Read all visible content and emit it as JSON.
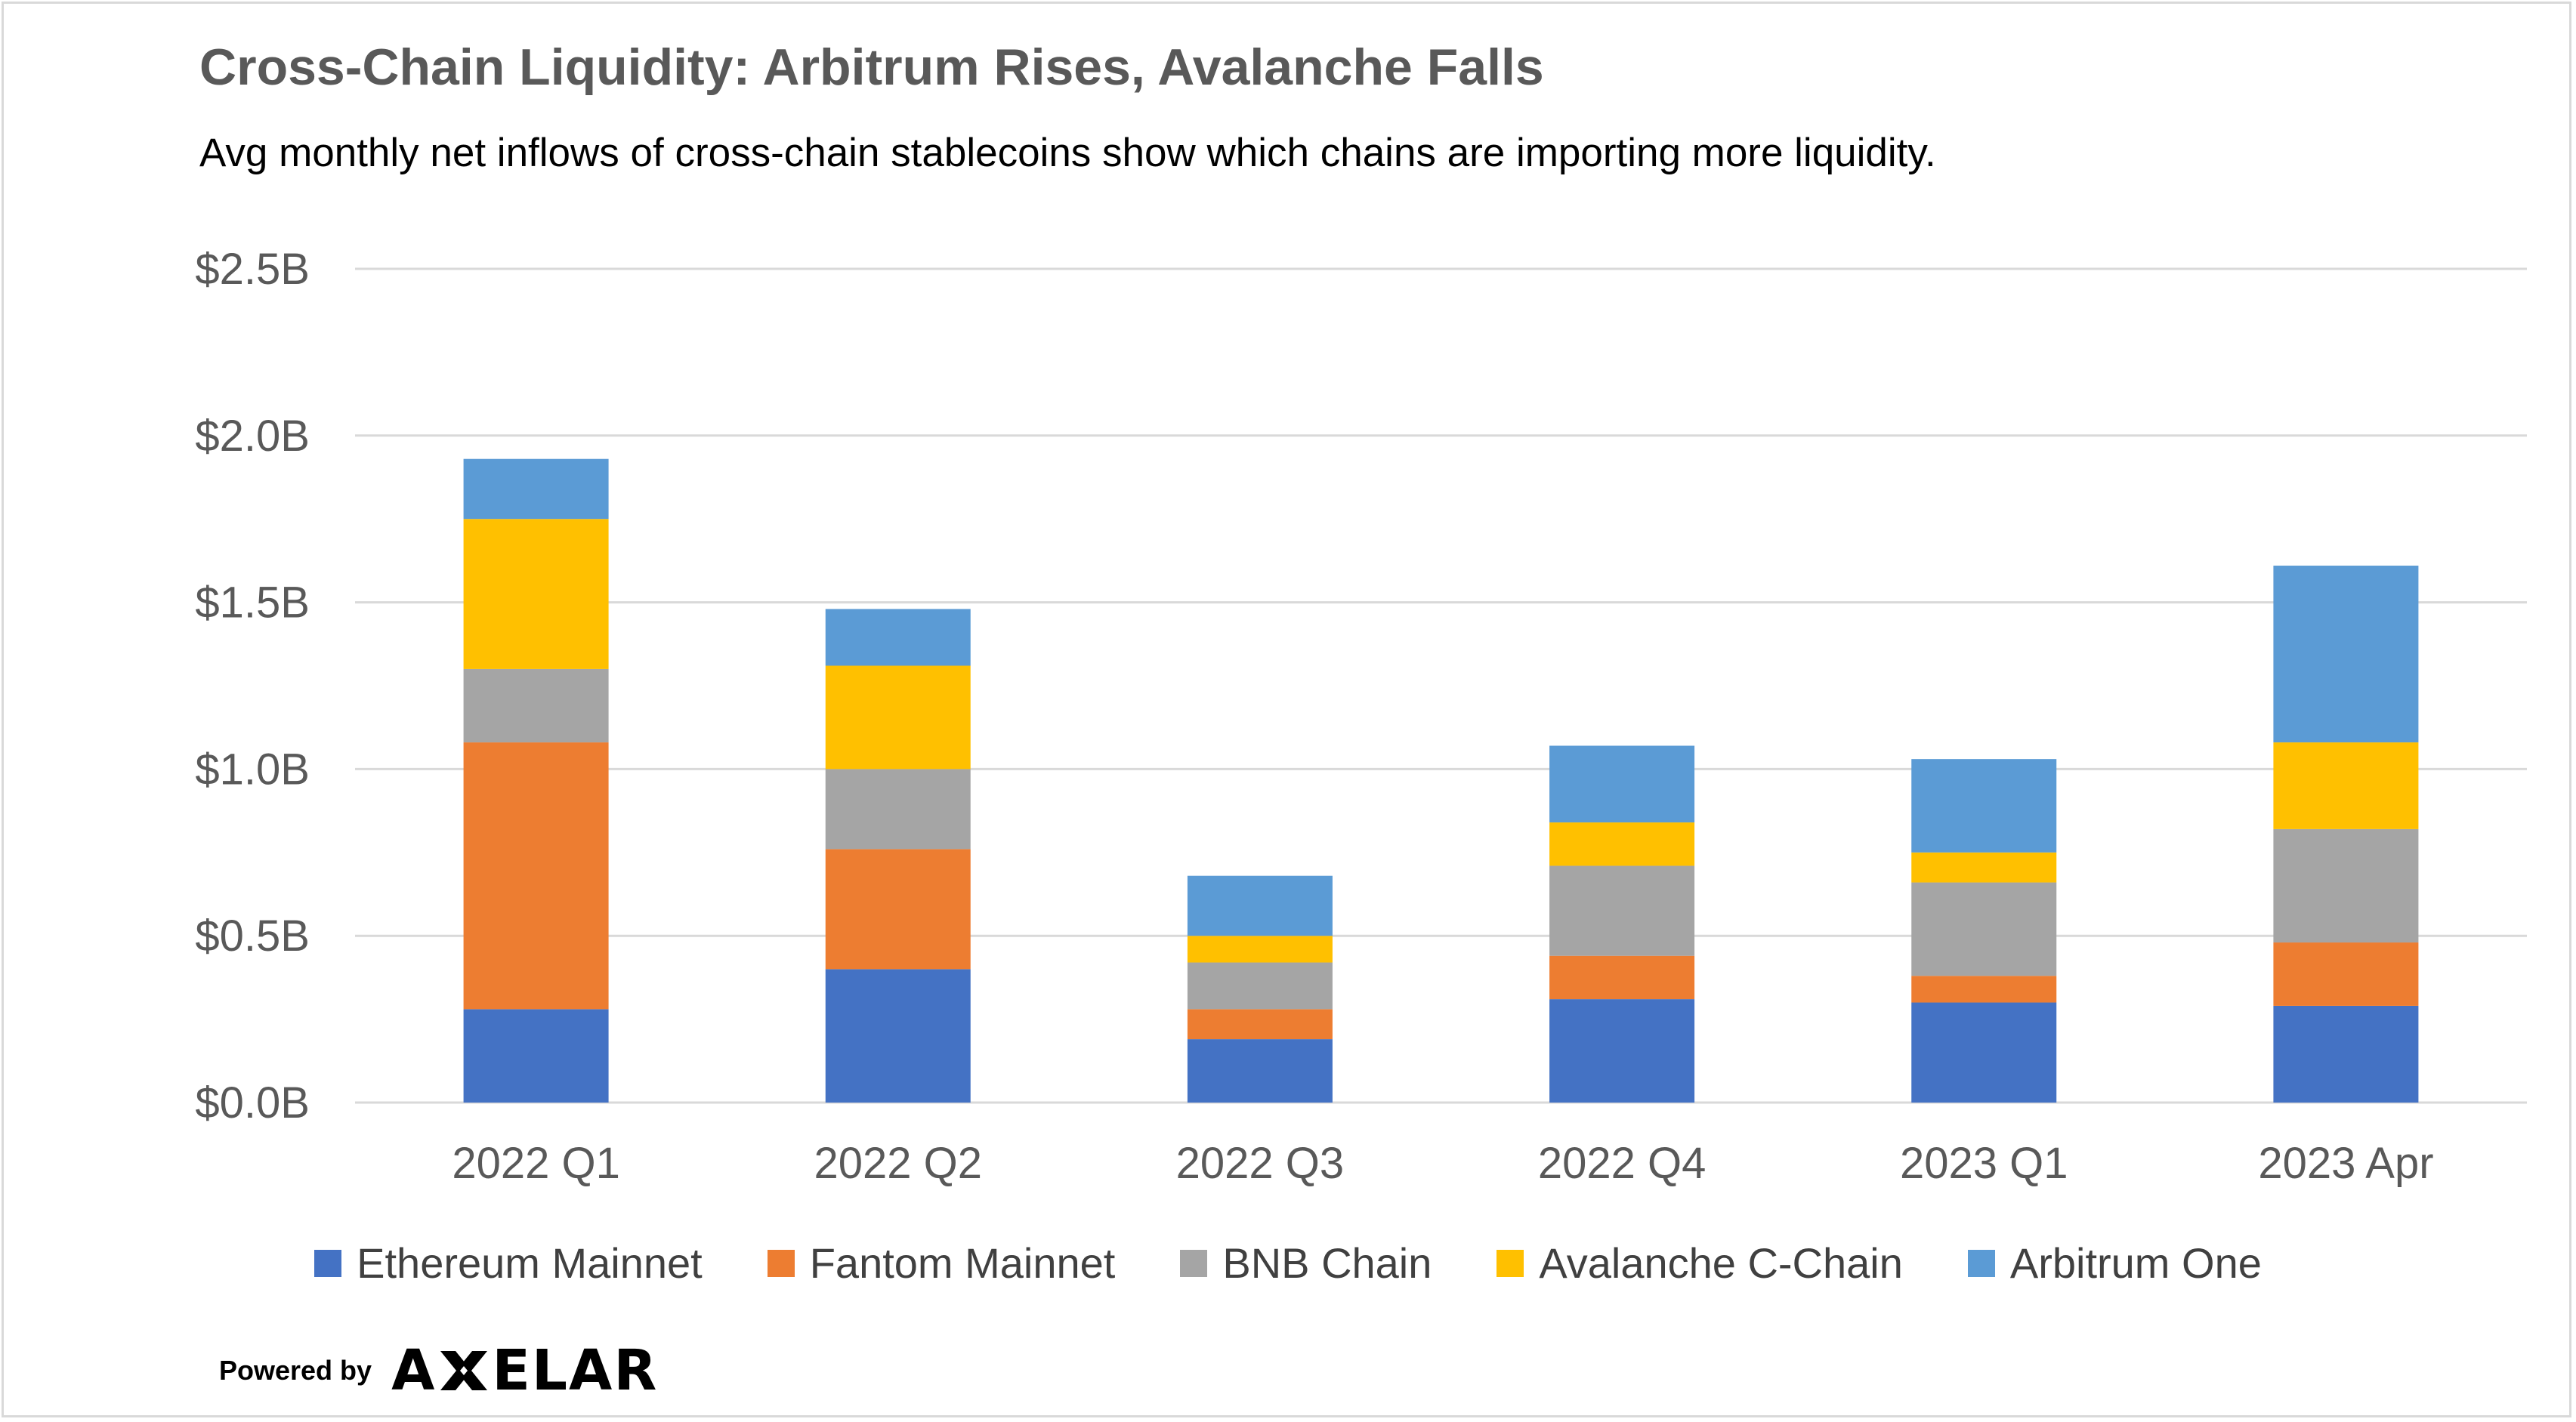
{
  "chart_data": {
    "type": "bar",
    "stacked": true,
    "title": "Cross-Chain Liquidity: Arbitrum Rises, Avalanche Falls",
    "subtitle": "Avg monthly net inflows of cross-chain stablecoins show which chains are importing more liquidity.",
    "xlabel": "",
    "ylabel": "",
    "ylim": [
      0,
      2.5
    ],
    "y_ticks": [
      0,
      0.5,
      1.0,
      1.5,
      2.0,
      2.5
    ],
    "y_tick_labels": [
      "$0.0B",
      "$0.5B",
      "$1.0B",
      "$1.5B",
      "$2.0B",
      "$2.5B"
    ],
    "grid": true,
    "legend_position": "bottom",
    "categories": [
      "2022 Q1",
      "2022 Q2",
      "2022 Q3",
      "2022 Q4",
      "2023 Q1",
      "2023 Apr"
    ],
    "series": [
      {
        "name": "Ethereum Mainnet",
        "color": "#4472C4",
        "values": [
          0.28,
          0.4,
          0.19,
          0.31,
          0.3,
          0.29
        ]
      },
      {
        "name": "Fantom Mainnet",
        "color": "#ED7D31",
        "values": [
          0.8,
          0.36,
          0.09,
          0.13,
          0.08,
          0.19
        ]
      },
      {
        "name": "BNB Chain",
        "color": "#A5A5A5",
        "values": [
          0.22,
          0.24,
          0.14,
          0.27,
          0.28,
          0.34
        ]
      },
      {
        "name": "Avalanche C-Chain",
        "color": "#FFC000",
        "values": [
          0.45,
          0.31,
          0.08,
          0.13,
          0.09,
          0.26
        ]
      },
      {
        "name": "Arbitrum One",
        "color": "#5B9BD5",
        "values": [
          0.18,
          0.17,
          0.18,
          0.23,
          0.28,
          0.53
        ]
      }
    ]
  },
  "footer": {
    "powered_by": "Powered by",
    "logo_text_a": "A",
    "logo_text_rest": "ELAR"
  }
}
